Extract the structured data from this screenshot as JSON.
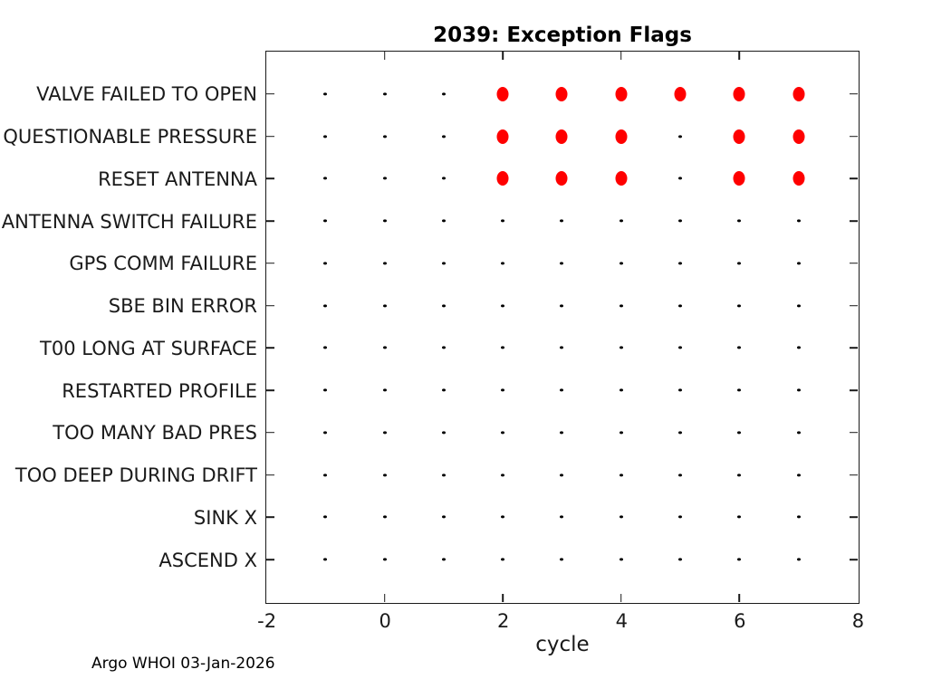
{
  "title": "2039: Exception Flags",
  "xlabel": "cycle",
  "footer": "Argo WHOI 03-Jan-2026",
  "colors": {
    "flagged_marker": "#ff0000",
    "unflagged_marker": "#000000",
    "axis": "#1a1a1a"
  },
  "chart_data": {
    "type": "scatter",
    "title": "2039: Exception Flags",
    "xlabel": "cycle",
    "ylabel": "",
    "xlim": [
      -2,
      8
    ],
    "xticks": [
      -2,
      0,
      2,
      4,
      6,
      8
    ],
    "inner_tick_x": [
      0,
      2,
      4,
      6
    ],
    "grid": false,
    "legend": null,
    "categories": [
      "VALVE FAILED TO OPEN",
      "QUESTIONABLE PRESSURE",
      "RESET ANTENNA",
      "ANTENNA SWITCH FAILURE",
      "GPS COMM FAILURE",
      "SBE BIN ERROR",
      "T00 LONG AT SURFACE",
      "RESTARTED PROFILE",
      "TOO MANY BAD PRES",
      "TOO DEEP DURING DRIFT",
      "SINK X",
      "ASCEND X"
    ],
    "rows": [
      {
        "label": "VALVE FAILED TO OPEN",
        "flagged_x": [
          2,
          3,
          4,
          5,
          6,
          7
        ],
        "unflagged_x": [
          -1,
          0,
          1
        ]
      },
      {
        "label": "QUESTIONABLE PRESSURE",
        "flagged_x": [
          2,
          3,
          4,
          6,
          7
        ],
        "unflagged_x": [
          -1,
          0,
          1,
          5
        ]
      },
      {
        "label": "RESET ANTENNA",
        "flagged_x": [
          2,
          3,
          4,
          6,
          7
        ],
        "unflagged_x": [
          -1,
          0,
          1,
          5
        ]
      },
      {
        "label": "ANTENNA SWITCH FAILURE",
        "flagged_x": [],
        "unflagged_x": [
          -1,
          0,
          1,
          2,
          3,
          4,
          5,
          6,
          7
        ]
      },
      {
        "label": "GPS COMM FAILURE",
        "flagged_x": [],
        "unflagged_x": [
          -1,
          0,
          1,
          2,
          3,
          4,
          5,
          6,
          7
        ]
      },
      {
        "label": "SBE BIN ERROR",
        "flagged_x": [],
        "unflagged_x": [
          -1,
          0,
          1,
          2,
          3,
          4,
          5,
          6,
          7
        ]
      },
      {
        "label": "T00 LONG AT SURFACE",
        "flagged_x": [],
        "unflagged_x": [
          -1,
          0,
          1,
          2,
          3,
          4,
          5,
          6,
          7
        ]
      },
      {
        "label": "RESTARTED PROFILE",
        "flagged_x": [],
        "unflagged_x": [
          -1,
          0,
          1,
          2,
          3,
          4,
          5,
          6,
          7
        ]
      },
      {
        "label": "TOO MANY BAD PRES",
        "flagged_x": [],
        "unflagged_x": [
          -1,
          0,
          1,
          2,
          3,
          4,
          5,
          6,
          7
        ]
      },
      {
        "label": "TOO DEEP DURING DRIFT",
        "flagged_x": [],
        "unflagged_x": [
          -1,
          0,
          1,
          2,
          3,
          4,
          5,
          6,
          7
        ]
      },
      {
        "label": "SINK X",
        "flagged_x": [],
        "unflagged_x": [
          -1,
          0,
          1,
          2,
          3,
          4,
          5,
          6,
          7
        ]
      },
      {
        "label": "ASCEND X",
        "flagged_x": [],
        "unflagged_x": [
          -1,
          0,
          1,
          2,
          3,
          4,
          5,
          6,
          7
        ]
      }
    ],
    "marker_colors": {
      "flagged": "#ff0000",
      "unflagged": "#000000"
    }
  }
}
